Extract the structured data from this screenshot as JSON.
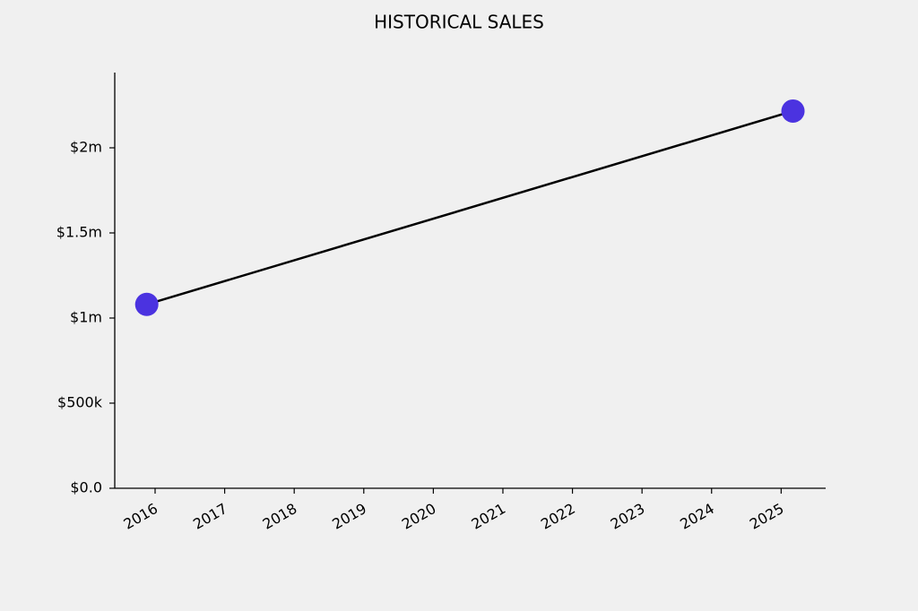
{
  "chart_data": {
    "type": "line",
    "title": "HISTORICAL SALES",
    "x": [
      2015.88,
      2025.17
    ],
    "values": [
      1080000,
      2216000
    ],
    "color": "#000000",
    "marker_color": "#4b33e0",
    "xlim": [
      2015.42,
      2025.64
    ],
    "xticks": [
      2016,
      2017,
      2018,
      2019,
      2020,
      2021,
      2022,
      2023,
      2024,
      2025
    ],
    "ylim": [
      0,
      2442000
    ],
    "yticks": [
      {
        "value": 0,
        "label": "$0.0"
      },
      {
        "value": 500000,
        "label": "$500k"
      },
      {
        "value": 1000000,
        "label": "$1m"
      },
      {
        "value": 1500000,
        "label": "$1.5m"
      },
      {
        "value": 2000000,
        "label": "$2m"
      }
    ],
    "grid": false
  }
}
